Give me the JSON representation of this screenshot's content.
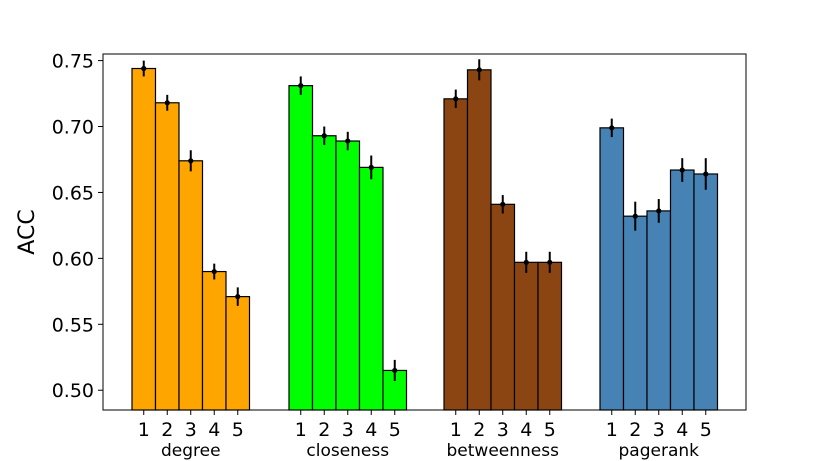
{
  "chart_data": {
    "type": "bar",
    "ylabel": "ACC",
    "ylim": [
      0.485,
      0.755
    ],
    "yticks": [
      "0.50",
      "0.55",
      "0.60",
      "0.65",
      "0.70",
      "0.75"
    ],
    "grid": false,
    "groups": [
      {
        "name": "degree",
        "color": "#FFA500",
        "categories": [
          "1",
          "2",
          "3",
          "4",
          "5"
        ],
        "values": [
          0.744,
          0.718,
          0.674,
          0.59,
          0.571
        ],
        "errors": [
          0.006,
          0.006,
          0.008,
          0.006,
          0.007
        ]
      },
      {
        "name": "closeness",
        "color": "#00FF00",
        "categories": [
          "1",
          "2",
          "3",
          "4",
          "5"
        ],
        "values": [
          0.731,
          0.693,
          0.689,
          0.669,
          0.515
        ],
        "errors": [
          0.007,
          0.007,
          0.007,
          0.009,
          0.008
        ]
      },
      {
        "name": "betweenness",
        "color": "#8B4513",
        "categories": [
          "1",
          "2",
          "3",
          "4",
          "5"
        ],
        "values": [
          0.721,
          0.743,
          0.641,
          0.597,
          0.597
        ],
        "errors": [
          0.007,
          0.008,
          0.007,
          0.008,
          0.008
        ]
      },
      {
        "name": "pagerank",
        "color": "#4682B4",
        "categories": [
          "1",
          "2",
          "3",
          "4",
          "5"
        ],
        "values": [
          0.699,
          0.632,
          0.636,
          0.667,
          0.664
        ],
        "errors": [
          0.007,
          0.011,
          0.009,
          0.009,
          0.012
        ]
      }
    ]
  }
}
